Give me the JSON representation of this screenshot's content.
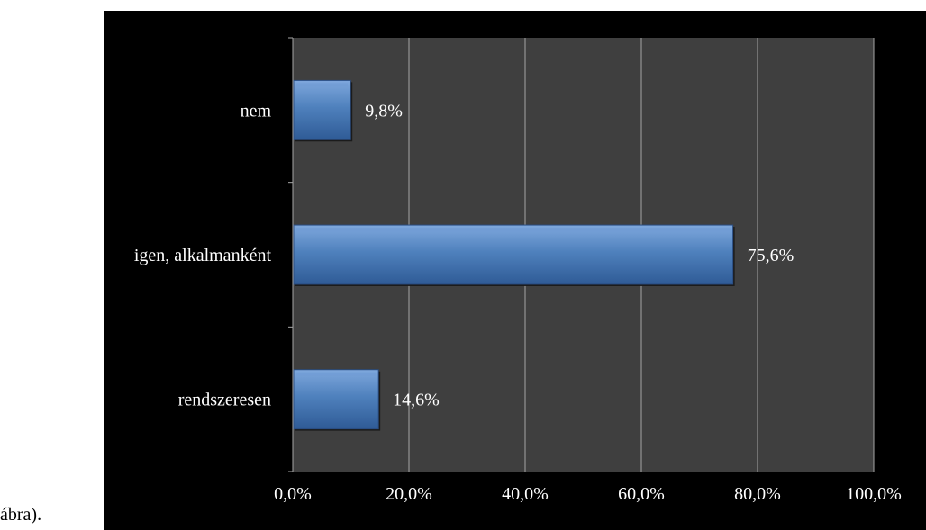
{
  "caption": "ábra).",
  "chart_data": {
    "type": "bar",
    "orientation": "horizontal",
    "categories": [
      "rendszeresen",
      "igen, alkalmanként",
      "nem"
    ],
    "values": [
      14.6,
      75.6,
      9.8
    ],
    "data_labels": [
      "14,6%",
      "75,6%",
      "9,8%"
    ],
    "xlim": [
      0,
      100
    ],
    "x_ticks": [
      0,
      20,
      40,
      60,
      80,
      100
    ],
    "x_tick_labels": [
      "0,0%",
      "20,0%",
      "40,0%",
      "60,0%",
      "80,0%",
      "100,0%"
    ],
    "grid": true,
    "title": "",
    "xlabel": "",
    "ylabel": "",
    "colors": {
      "frame_background": "#000000",
      "plot_background": "#3f3f3f",
      "gridline": "#a6a6a6",
      "bar_fill": "#4f81bd",
      "bar_highlight": "#6f9bd6",
      "bar_shadow": "#2a4d82",
      "text": "#ffffff"
    }
  }
}
